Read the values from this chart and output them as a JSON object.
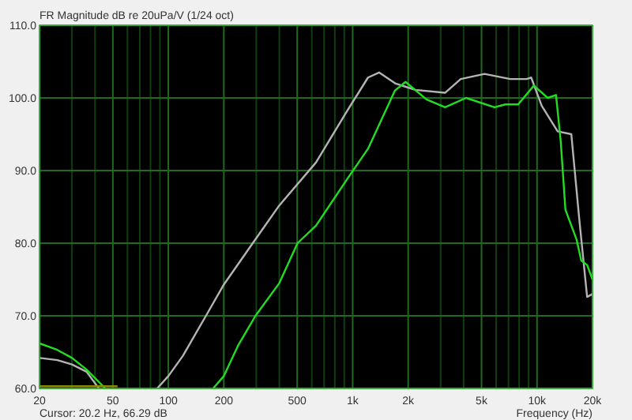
{
  "chart_data": {
    "type": "line",
    "title": "FR Magnitude dB re 20uPa/V (1/24 oct)",
    "xlabel": "Frequency (Hz)",
    "log": "x",
    "grid": true,
    "xlim": [
      20,
      20000
    ],
    "ylim": [
      60,
      110
    ],
    "xticks": [
      20,
      {
        "value": 30,
        "label": null
      },
      {
        "value": 40,
        "label": null
      },
      50,
      {
        "value": 60,
        "label": null
      },
      {
        "value": 70,
        "label": null
      },
      {
        "value": 80,
        "label": null
      },
      {
        "value": 90,
        "label": null
      },
      100,
      200,
      {
        "value": 300,
        "label": null
      },
      {
        "value": 400,
        "label": null
      },
      500,
      {
        "value": 600,
        "label": null
      },
      {
        "value": 700,
        "label": null
      },
      {
        "value": 800,
        "label": null
      },
      {
        "value": 900,
        "label": null
      },
      {
        "value": 1000,
        "label": "1k"
      },
      {
        "value": 2000,
        "label": "2k"
      },
      {
        "value": 3000,
        "label": null
      },
      {
        "value": 4000,
        "label": null
      },
      {
        "value": 5000,
        "label": "5k"
      },
      {
        "value": 6000,
        "label": null
      },
      {
        "value": 7000,
        "label": null
      },
      {
        "value": 8000,
        "label": null
      },
      {
        "value": 9000,
        "label": null
      },
      {
        "value": 10000,
        "label": "10k"
      },
      {
        "value": 20000,
        "label": "20k"
      }
    ],
    "yticks": [
      {
        "value": 60,
        "label": "60.0"
      },
      {
        "value": 70,
        "label": "70.0"
      },
      {
        "value": 80,
        "label": "80.0"
      },
      {
        "value": 90,
        "label": "90.0"
      },
      {
        "value": 100,
        "label": "100.0"
      },
      {
        "value": 110,
        "label": "110.0"
      }
    ],
    "annotations": [
      "Cursor: 20.2 Hz, 66.29 dB"
    ],
    "series": [
      {
        "color": "#b4b4b4",
        "x": [
          20,
          25,
          30,
          36,
          42,
          60,
          87,
          100,
          120,
          160,
          200,
          287,
          400,
          632,
          938,
          1211,
          1390,
          1700,
          2190,
          3170,
          3855,
          5190,
          7160,
          8770,
          9300,
          10610,
          12940,
          15350,
          16940,
          18700,
          20000
        ],
        "values": [
          64.2,
          63.9,
          63.3,
          62.3,
          60,
          null,
          60,
          61.7,
          64.5,
          70,
          74.3,
          80,
          85.2,
          91.1,
          98.3,
          102.8,
          103.5,
          102,
          101.1,
          100.7,
          102.6,
          103.3,
          102.6,
          102.6,
          102.8,
          98.9,
          95.4,
          95,
          83.4,
          72.6,
          73
        ]
      },
      {
        "color": "#22dd22",
        "x": [
          20,
          25,
          30,
          36,
          45.5,
          60,
          175,
          200,
          240,
          297,
          400,
          502,
          632,
          938,
          1211,
          1695,
          1935,
          2513,
          3170,
          4120,
          5875,
          6745,
          7900,
          9620,
          11420,
          12680,
          13450,
          14260,
          16390,
          17380,
          18700,
          20000
        ],
        "values": [
          66.2,
          65.3,
          64.2,
          62.6,
          60,
          null,
          60,
          61.7,
          66,
          70,
          74.5,
          80,
          82.4,
          88.9,
          93,
          101,
          102.2,
          99.8,
          98.7,
          100,
          98.7,
          99.1,
          99.1,
          101.7,
          100,
          100.4,
          94,
          84.6,
          80.5,
          77.6,
          77,
          75
        ]
      },
      {
        "color": "#8c8c00",
        "x": [
          20,
          53
        ],
        "values": [
          60.3,
          60.3
        ]
      }
    ]
  }
}
